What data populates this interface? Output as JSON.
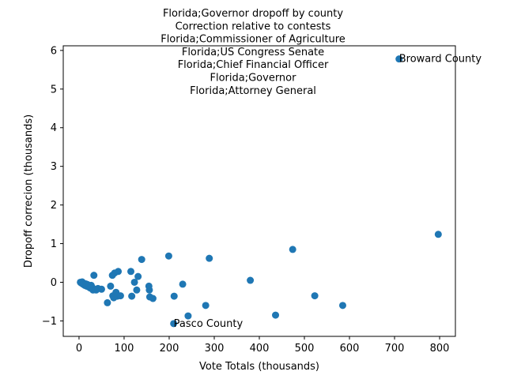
{
  "chart_data": {
    "type": "scatter",
    "title_lines": [
      "Florida;Governor dropoff by county",
      "Correction relative to contests",
      "Florida;Commissioner of Agriculture",
      "Florida;US Congress Senate",
      "Florida;Chief Financial Officer",
      "Florida;Governor",
      "Florida;Attorney General"
    ],
    "xlabel": "Vote Totals (thousands)",
    "ylabel": "Dropoff correcion (thousands)",
    "xlim": [
      -35,
      835
    ],
    "ylim": [
      -1.4,
      6.12
    ],
    "xticks": [
      0,
      100,
      200,
      300,
      400,
      500,
      600,
      700,
      800
    ],
    "yticks": [
      -1,
      0,
      1,
      2,
      3,
      4,
      5,
      6
    ],
    "grid": false,
    "marker_color": "#1f77b4",
    "points": [
      {
        "x": 3,
        "y": 0.0
      },
      {
        "x": 5,
        "y": -0.02
      },
      {
        "x": 7,
        "y": 0.01
      },
      {
        "x": 9,
        "y": -0.05
      },
      {
        "x": 11,
        "y": -0.03
      },
      {
        "x": 13,
        "y": -0.08
      },
      {
        "x": 15,
        "y": -0.04
      },
      {
        "x": 17,
        "y": -0.1
      },
      {
        "x": 19,
        "y": -0.06
      },
      {
        "x": 21,
        "y": -0.12
      },
      {
        "x": 23,
        "y": -0.09
      },
      {
        "x": 25,
        "y": -0.15
      },
      {
        "x": 27,
        "y": -0.08
      },
      {
        "x": 29,
        "y": -0.13
      },
      {
        "x": 31,
        "y": -0.2
      },
      {
        "x": 33,
        "y": 0.18
      },
      {
        "x": 38,
        "y": -0.2
      },
      {
        "x": 42,
        "y": -0.16
      },
      {
        "x": 50,
        "y": -0.18
      },
      {
        "x": 63,
        "y": -0.53
      },
      {
        "x": 70,
        "y": -0.1
      },
      {
        "x": 74,
        "y": 0.18
      },
      {
        "x": 75,
        "y": -0.35
      },
      {
        "x": 77,
        "y": -0.4
      },
      {
        "x": 79,
        "y": 0.24
      },
      {
        "x": 82,
        "y": -0.26
      },
      {
        "x": 85,
        "y": -0.36
      },
      {
        "x": 87,
        "y": 0.28
      },
      {
        "x": 92,
        "y": -0.35
      },
      {
        "x": 115,
        "y": 0.28
      },
      {
        "x": 117,
        "y": -0.36
      },
      {
        "x": 123,
        "y": 0.0
      },
      {
        "x": 128,
        "y": -0.2
      },
      {
        "x": 131,
        "y": 0.15
      },
      {
        "x": 139,
        "y": 0.59
      },
      {
        "x": 155,
        "y": -0.1
      },
      {
        "x": 156,
        "y": -0.2
      },
      {
        "x": 157,
        "y": -0.38
      },
      {
        "x": 164,
        "y": -0.42
      },
      {
        "x": 199,
        "y": 0.68
      },
      {
        "x": 210,
        "y": -1.07
      },
      {
        "x": 211,
        "y": -0.36
      },
      {
        "x": 230,
        "y": -0.05
      },
      {
        "x": 242,
        "y": -0.87
      },
      {
        "x": 281,
        "y": -0.6
      },
      {
        "x": 289,
        "y": 0.62
      },
      {
        "x": 380,
        "y": 0.05
      },
      {
        "x": 436,
        "y": -0.85
      },
      {
        "x": 474,
        "y": 0.85
      },
      {
        "x": 523,
        "y": -0.35
      },
      {
        "x": 585,
        "y": -0.6
      },
      {
        "x": 710,
        "y": 5.78
      },
      {
        "x": 797,
        "y": 1.24
      }
    ],
    "annotations": [
      {
        "text": "Broward County",
        "x": 710,
        "y": 5.78
      },
      {
        "text": "Pasco County",
        "x": 210,
        "y": -1.07
      }
    ]
  }
}
